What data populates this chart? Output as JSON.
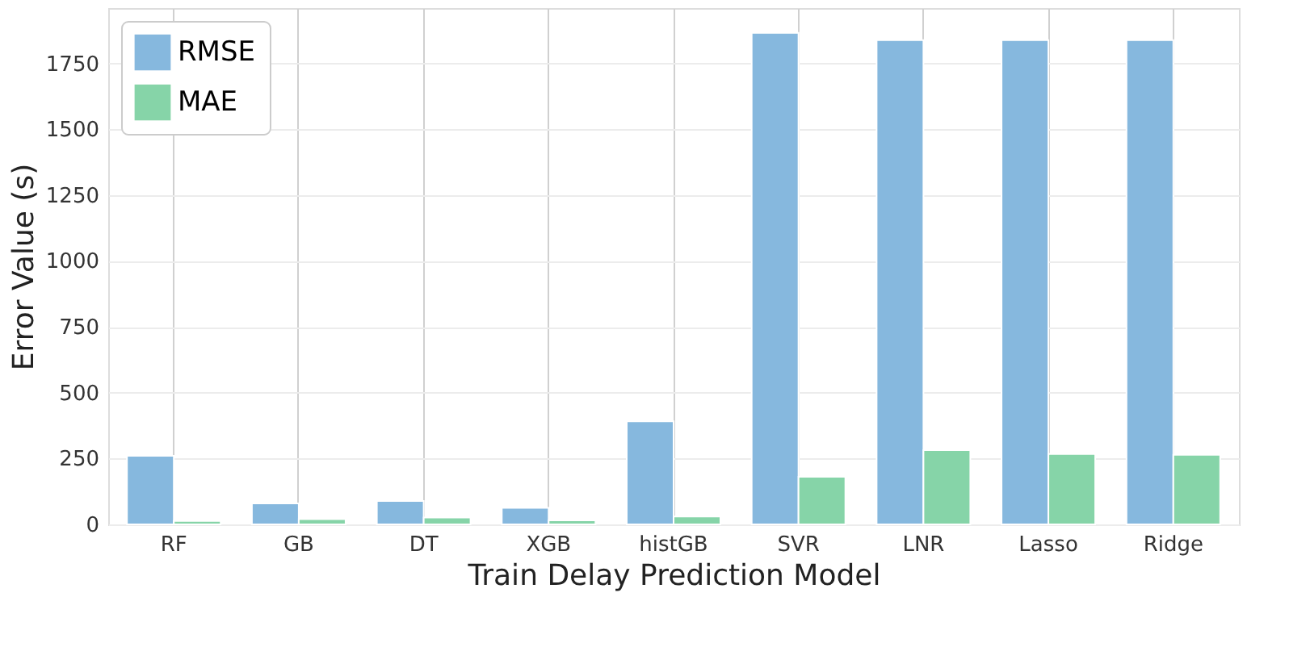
{
  "chart_data": {
    "type": "bar",
    "xlabel": "Train Delay Prediction Model",
    "ylabel": "Error Value (s)",
    "categories": [
      "RF",
      "GB",
      "DT",
      "XGB",
      "histGB",
      "SVR",
      "LNR",
      "Lasso",
      "Ridge"
    ],
    "series": [
      {
        "name": "RMSE",
        "color": "#86b8de",
        "values": [
          260,
          80,
          89,
          63,
          391,
          1866,
          1838,
          1838,
          1838
        ]
      },
      {
        "name": "MAE",
        "color": "#86d4a8",
        "values": [
          13,
          20,
          26,
          15,
          30,
          181,
          282,
          267,
          264
        ]
      }
    ],
    "ylim": [
      0,
      1960
    ],
    "yticks": [
      0,
      250,
      500,
      750,
      1000,
      1250,
      1500,
      1750
    ],
    "grid": true,
    "legend": "top left"
  }
}
